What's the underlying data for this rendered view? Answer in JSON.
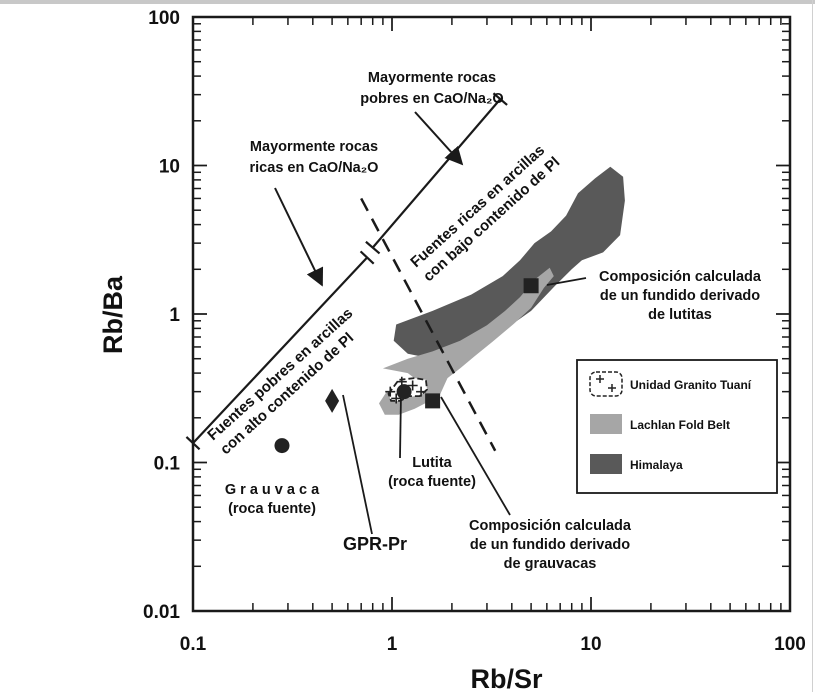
{
  "chart_data": {
    "type": "scatter",
    "xscale": "log",
    "yscale": "log",
    "xlim": [
      0.1,
      100
    ],
    "ylim": [
      0.01,
      100
    ],
    "xlabel": "Rb/Sr",
    "ylabel": "Rb/Ba",
    "xticks": [
      "0.1",
      "1",
      "10",
      "100"
    ],
    "yticks": [
      "0.01",
      "0.1",
      "1",
      "10",
      "100"
    ],
    "legend_position": "right",
    "legend": [
      {
        "label": "Unidad Granito Tuaní",
        "symbol": "white-blob-with-crosses"
      },
      {
        "label": "Lachlan Fold Belt",
        "color": "#a6a6a6"
      },
      {
        "label": "Himalaya",
        "color": "#595959"
      }
    ],
    "colors": {
      "himalaya": "#595959",
      "lachlan": "#a6a6a6",
      "frame": "#1a1a1a"
    },
    "points": [
      {
        "name": "Grauvaca (roca fuente)",
        "lines": [
          "G r a u v a c a",
          "(roca fuente)"
        ],
        "x": 0.28,
        "y": 0.13,
        "marker": "circle"
      },
      {
        "name": "GPR-Pr",
        "lines": [
          "GPR-Pr"
        ],
        "x": 0.5,
        "y": 0.26,
        "marker": "diamond"
      },
      {
        "name": "Lutita (roca fuente)",
        "lines": [
          "Lutita",
          "(roca fuente)"
        ],
        "x": 1.15,
        "y": 0.3,
        "marker": "circle"
      },
      {
        "name": "Composición calculada de un fundido derivado de grauvacas",
        "lines": [
          "Composición calculada",
          "de un fundido derivado",
          "de grauvacas"
        ],
        "x": 1.6,
        "y": 0.26,
        "marker": "square"
      },
      {
        "name": "Composición calculada de un fundido derivado de lutitas",
        "lines": [
          "Composición calculada",
          "de un fundido derivado",
          "de lutitas"
        ],
        "x": 5,
        "y": 1.55,
        "marker": "square"
      }
    ],
    "fields": [
      {
        "name": "Himalaya",
        "polygon": [
          [
            1.05,
            0.85
          ],
          [
            1.6,
            1.05
          ],
          [
            2.5,
            1.35
          ],
          [
            3.6,
            1.8
          ],
          [
            4.4,
            2.3
          ],
          [
            5.2,
            3.0
          ],
          [
            6.3,
            3.6
          ],
          [
            7.5,
            4.6
          ],
          [
            8.6,
            6.5
          ],
          [
            10.5,
            8.2
          ],
          [
            12.5,
            9.8
          ],
          [
            14.5,
            8.4
          ],
          [
            14.8,
            5.8
          ],
          [
            14,
            3.4
          ],
          [
            11.5,
            2.6
          ],
          [
            9,
            2.3
          ],
          [
            8,
            2.0
          ],
          [
            6.6,
            1.55
          ],
          [
            5,
            1.05
          ],
          [
            4,
            0.85
          ],
          [
            3,
            0.68
          ],
          [
            2.2,
            0.56
          ],
          [
            1.6,
            0.5
          ],
          [
            1.2,
            0.54
          ],
          [
            1.02,
            0.66
          ]
        ]
      },
      {
        "name": "Lachlan Fold Belt",
        "polygon": [
          [
            0.9,
            0.43
          ],
          [
            1.2,
            0.5
          ],
          [
            1.6,
            0.56
          ],
          [
            2.2,
            0.66
          ],
          [
            3,
            0.84
          ],
          [
            3.7,
            1.05
          ],
          [
            4.4,
            1.3
          ],
          [
            5.2,
            1.7
          ],
          [
            6.2,
            2.05
          ],
          [
            6.5,
            1.8
          ],
          [
            5.8,
            1.5
          ],
          [
            5,
            1.1
          ],
          [
            4.1,
            0.86
          ],
          [
            3.2,
            0.65
          ],
          [
            2.6,
            0.52
          ],
          [
            2.2,
            0.43
          ],
          [
            1.9,
            0.37
          ],
          [
            1.75,
            0.29
          ],
          [
            1.55,
            0.26
          ],
          [
            1.3,
            0.23
          ],
          [
            1.08,
            0.21
          ],
          [
            0.92,
            0.21
          ],
          [
            0.86,
            0.25
          ],
          [
            0.94,
            0.3
          ],
          [
            1.12,
            0.27
          ],
          [
            1.3,
            0.28
          ],
          [
            1.45,
            0.33
          ],
          [
            1.2,
            0.4
          ]
        ]
      },
      {
        "name": "Unidad Granito Tuaní",
        "polygon": [
          [
            0.96,
            0.29
          ],
          [
            1.08,
            0.36
          ],
          [
            1.3,
            0.37
          ],
          [
            1.48,
            0.36
          ],
          [
            1.5,
            0.31
          ],
          [
            1.38,
            0.28
          ],
          [
            1.22,
            0.28
          ],
          [
            1.1,
            0.26
          ],
          [
            0.99,
            0.26
          ]
        ]
      }
    ],
    "annotations": [
      {
        "id": "mayormente_pobres",
        "lines": [
          "Mayormente rocas",
          "pobres en CaO/Na₂O"
        ]
      },
      {
        "id": "mayormente_ricas",
        "lines": [
          "Mayormente rocas",
          "ricas en CaO/Na₂O"
        ]
      },
      {
        "id": "fuentes_ricas",
        "lines": [
          "Fuentes ricas en arcillas",
          "con bajo contenido de Pl"
        ]
      },
      {
        "id": "fuentes_pobres",
        "lines": [
          "Fuentes pobres en arcillas",
          "con alto contenido de Pl"
        ]
      }
    ],
    "boundaries": [
      {
        "name": "upper-line",
        "style": "solid",
        "from": [
          0.8,
          2.8
        ],
        "to": [
          3.5,
          28
        ],
        "end_bar": true
      },
      {
        "name": "lower-line",
        "style": "solid",
        "from": [
          0.1,
          0.135
        ],
        "to": [
          0.75,
          2.4
        ],
        "end_bar": true
      },
      {
        "name": "dashed-divider",
        "style": "dashed",
        "from": [
          0.7,
          6
        ],
        "to": [
          3.3,
          0.12
        ]
      }
    ]
  }
}
